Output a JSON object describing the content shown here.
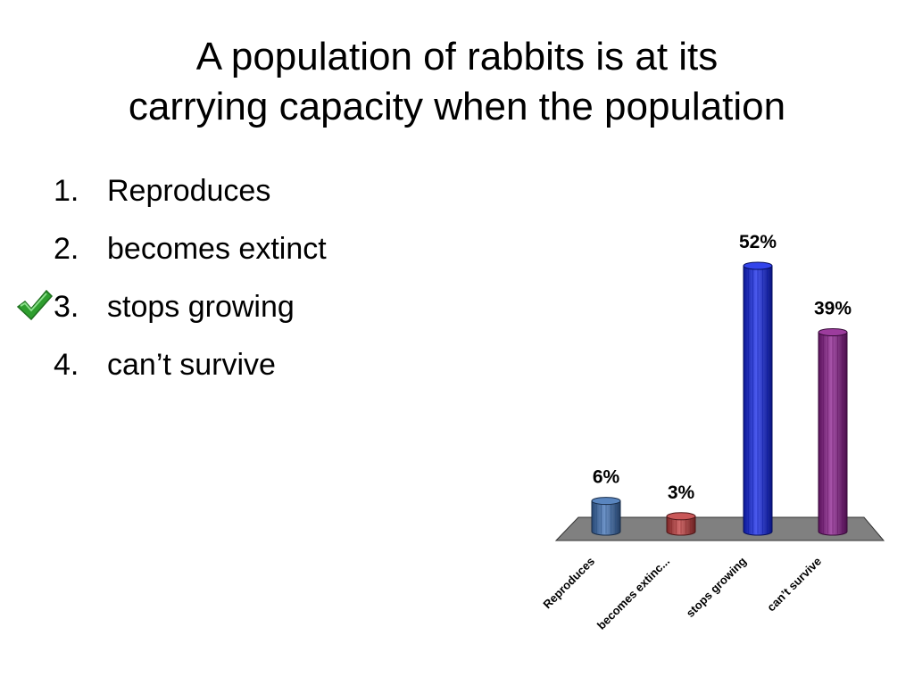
{
  "title": {
    "line1": "A population of rabbits is at its",
    "line2": "carrying capacity when the population"
  },
  "options": [
    {
      "number": "1.",
      "text": "Reproduces",
      "correct": false
    },
    {
      "number": "2.",
      "text": "becomes extinct",
      "correct": false
    },
    {
      "number": "3.",
      "text": "stops growing",
      "correct": true
    },
    {
      "number": "4.",
      "text": "can’t survive",
      "correct": false
    }
  ],
  "check_icon": "check-mark-icon",
  "chart_data": {
    "type": "bar",
    "categories": [
      "Reproduces",
      "becomes extinc...",
      "stops growing",
      "can’t survive"
    ],
    "values": [
      6,
      3,
      52,
      39
    ],
    "value_labels": [
      "6%",
      "3%",
      "52%",
      "39%"
    ],
    "colors": [
      "#3c6fb4",
      "#c0393b",
      "#0f23e8",
      "#8a1a8c"
    ],
    "floor_color": "#808080",
    "ylim": [
      0,
      52
    ],
    "title": "",
    "xlabel": "",
    "ylabel": ""
  }
}
